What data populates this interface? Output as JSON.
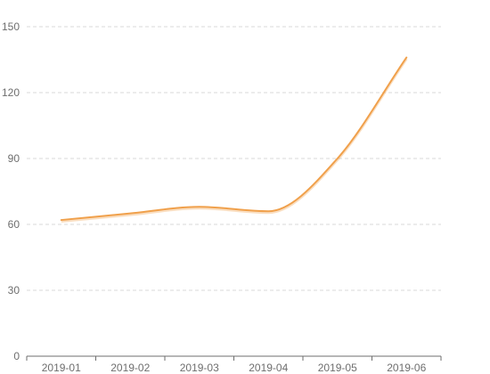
{
  "chart_data": {
    "type": "line",
    "smooth": true,
    "categories": [
      "2019-01",
      "2019-02",
      "2019-03",
      "2019-04",
      "2019-05",
      "2019-06"
    ],
    "series": [
      {
        "values": [
          62,
          65,
          68,
          66,
          90,
          136
        ],
        "color": "#f0a04b"
      }
    ],
    "y_ticks": [
      "0",
      "30",
      "60",
      "90",
      "120",
      "150"
    ],
    "ylim": [
      0,
      150
    ],
    "grid": "horizontal-dashed",
    "legend": "none",
    "title": "",
    "xlabel": "",
    "ylabel": ""
  }
}
